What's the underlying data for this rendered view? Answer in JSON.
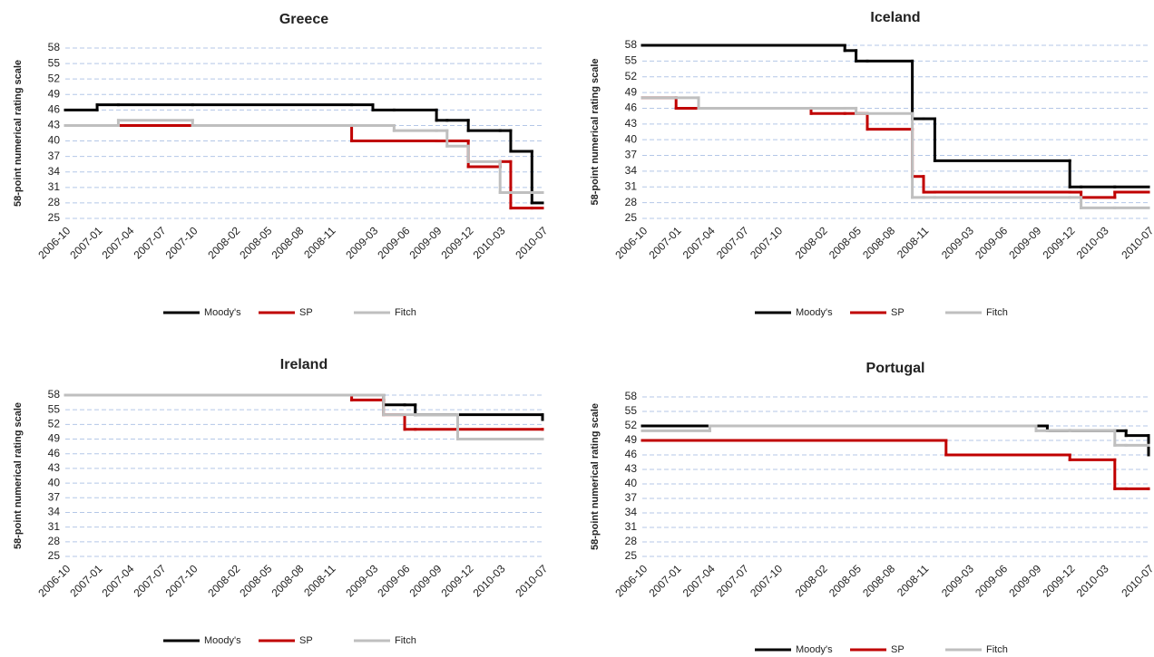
{
  "chart_data": [
    {
      "type": "line",
      "step": true,
      "title": "Greece",
      "y_label": "58-point numerical rating scale",
      "x": [
        "2006-10",
        "2007-01",
        "2007-03",
        "2007-10",
        "2009-01",
        "2009-03",
        "2009-05",
        "2009-09",
        "2009-10",
        "2009-12",
        "2010-03",
        "2010-04",
        "2010-06"
      ],
      "series": [
        {
          "name": "Moody's",
          "color": "#000000",
          "values": [
            46,
            47,
            47,
            47,
            47,
            46,
            46,
            44,
            44,
            42,
            42,
            38,
            28
          ]
        },
        {
          "name": "SP",
          "color": "#c00000",
          "values": [
            43,
            43,
            43,
            43,
            40,
            40,
            40,
            40,
            40,
            35,
            36,
            27,
            27
          ]
        },
        {
          "name": "Fitch",
          "color": "#bfbfbf",
          "values": [
            43,
            43,
            44,
            43,
            43,
            43,
            42,
            42,
            39,
            36,
            30,
            30,
            30
          ]
        }
      ],
      "xlim": [
        "2006-10",
        "2010-07"
      ],
      "xticks": [
        "2006-10",
        "2007-01",
        "2007-04",
        "2007-07",
        "2007-10",
        "2008-02",
        "2008-05",
        "2008-08",
        "2008-11",
        "2009-03",
        "2009-06",
        "2009-09",
        "2009-12",
        "2010-03",
        "2010-07"
      ],
      "ylim": [
        25,
        58
      ],
      "yticks": [
        25,
        28,
        31,
        34,
        37,
        40,
        43,
        46,
        49,
        52,
        55,
        58
      ],
      "grid": true
    },
    {
      "type": "line",
      "step": true,
      "title": "Iceland",
      "y_label": "58-point numerical rating scale",
      "x": [
        "2006-10",
        "2007-01",
        "2007-03",
        "2008-01",
        "2008-04",
        "2008-05",
        "2008-06",
        "2008-10",
        "2008-11",
        "2008-12",
        "2009-12",
        "2010-01",
        "2010-04"
      ],
      "series": [
        {
          "name": "Moody's",
          "color": "#000000",
          "values": [
            58,
            58,
            58,
            58,
            57,
            55,
            55,
            44,
            44,
            36,
            31,
            31,
            31
          ]
        },
        {
          "name": "SP",
          "color": "#c00000",
          "values": [
            48,
            46,
            46,
            45,
            45,
            45,
            42,
            33,
            30,
            30,
            30,
            29,
            30
          ]
        },
        {
          "name": "Fitch",
          "color": "#bfbfbf",
          "values": [
            48,
            48,
            46,
            46,
            46,
            45,
            45,
            29,
            29,
            29,
            29,
            27,
            27
          ]
        }
      ],
      "xlim": [
        "2006-10",
        "2010-07"
      ],
      "xticks": [
        "2006-10",
        "2007-01",
        "2007-04",
        "2007-07",
        "2007-10",
        "2008-02",
        "2008-05",
        "2008-08",
        "2008-11",
        "2009-03",
        "2009-06",
        "2009-09",
        "2009-12",
        "2010-03",
        "2010-07"
      ],
      "ylim": [
        25,
        58
      ],
      "yticks": [
        25,
        28,
        31,
        34,
        37,
        40,
        43,
        46,
        49,
        52,
        55,
        58
      ],
      "grid": true
    },
    {
      "type": "line",
      "step": true,
      "title": "Ireland",
      "y_label": "58-point numerical rating scale",
      "x": [
        "2006-10",
        "2009-01",
        "2009-04",
        "2009-06",
        "2009-07",
        "2009-11",
        "2010-07"
      ],
      "series": [
        {
          "name": "Moody's",
          "color": "#000000",
          "values": [
            58,
            58,
            56,
            56,
            54,
            54,
            53
          ]
        },
        {
          "name": "SP",
          "color": "#c00000",
          "values": [
            58,
            57,
            54,
            51,
            51,
            51,
            51
          ]
        },
        {
          "name": "Fitch",
          "color": "#bfbfbf",
          "values": [
            58,
            58,
            54,
            54,
            54,
            49,
            49
          ]
        }
      ],
      "xlim": [
        "2006-10",
        "2010-07"
      ],
      "xticks": [
        "2006-10",
        "2007-01",
        "2007-04",
        "2007-07",
        "2007-10",
        "2008-02",
        "2008-05",
        "2008-08",
        "2008-11",
        "2009-03",
        "2009-06",
        "2009-09",
        "2009-12",
        "2010-03",
        "2010-07"
      ],
      "ylim": [
        25,
        58
      ],
      "yticks": [
        25,
        28,
        31,
        34,
        37,
        40,
        43,
        46,
        49,
        52,
        55,
        58
      ],
      "grid": true
    },
    {
      "type": "line",
      "step": true,
      "title": "Portugal",
      "y_label": "58-point numerical rating scale",
      "x": [
        "2006-10",
        "2007-04",
        "2009-01",
        "2009-09",
        "2009-10",
        "2009-12",
        "2010-04",
        "2010-05",
        "2010-07"
      ],
      "series": [
        {
          "name": "Moody's",
          "color": "#000000",
          "values": [
            52,
            52,
            52,
            52,
            51,
            51,
            51,
            50,
            46
          ]
        },
        {
          "name": "SP",
          "color": "#c00000",
          "values": [
            49,
            49,
            46,
            46,
            46,
            45,
            39,
            39,
            39
          ]
        },
        {
          "name": "Fitch",
          "color": "#bfbfbf",
          "values": [
            51,
            52,
            52,
            51,
            51,
            51,
            48,
            48,
            48
          ]
        }
      ],
      "xlim": [
        "2006-10",
        "2010-07"
      ],
      "xticks": [
        "2006-10",
        "2007-01",
        "2007-04",
        "2007-07",
        "2007-10",
        "2008-02",
        "2008-05",
        "2008-08",
        "2008-11",
        "2009-03",
        "2009-06",
        "2009-09",
        "2009-12",
        "2010-03",
        "2010-07"
      ],
      "ylim": [
        25,
        58
      ],
      "yticks": [
        25,
        28,
        31,
        34,
        37,
        40,
        43,
        46,
        49,
        52,
        55,
        58
      ],
      "grid": true
    }
  ]
}
